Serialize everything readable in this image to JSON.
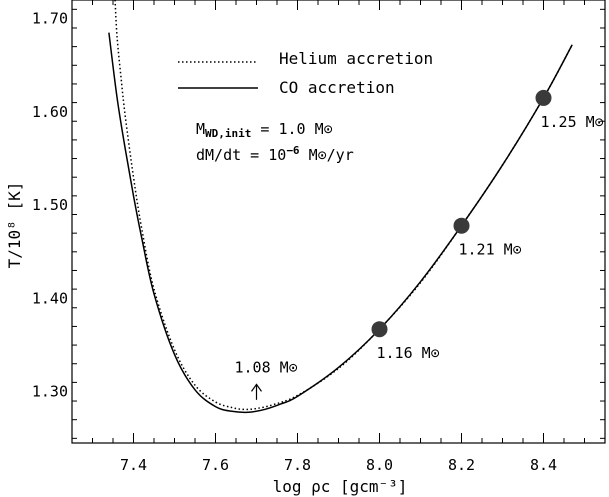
{
  "chart_data": {
    "type": "line",
    "title": "",
    "xlabel": "log ρc [gcm⁻³]",
    "ylabel": "T/10⁸ [K]",
    "xlim": [
      7.25,
      8.55
    ],
    "ylim": [
      1.245,
      1.72
    ],
    "x_ticks": [
      "7.4",
      "7.6",
      "7.8",
      "8.0",
      "8.2",
      "8.4"
    ],
    "y_ticks": [
      "1.30",
      "1.40",
      "1.50",
      "1.60",
      "1.70"
    ],
    "grid": false,
    "legend_position": "top-left",
    "series": [
      {
        "name": "Helium accretion",
        "style": "dotted",
        "color": "#000000",
        "x": [
          7.355,
          7.36,
          7.37,
          7.38,
          7.4,
          7.42,
          7.45,
          7.5,
          7.55,
          7.6,
          7.64,
          7.67,
          7.7,
          7.74,
          7.8,
          7.9,
          8.0,
          8.1,
          8.2,
          8.3,
          8.4,
          8.47
        ],
        "y": [
          1.72,
          1.68,
          1.635,
          1.595,
          1.53,
          1.475,
          1.41,
          1.345,
          1.307,
          1.289,
          1.283,
          1.281,
          1.282,
          1.286,
          1.296,
          1.325,
          1.367,
          1.417,
          1.478,
          1.543,
          1.615,
          1.672
        ]
      },
      {
        "name": "CO accretion",
        "style": "solid",
        "color": "#000000",
        "x": [
          7.34,
          7.36,
          7.38,
          7.4,
          7.42,
          7.45,
          7.5,
          7.55,
          7.6,
          7.64,
          7.68,
          7.72,
          7.76,
          7.8,
          7.9,
          8.0,
          8.1,
          8.2,
          8.3,
          8.4,
          8.47
        ],
        "y": [
          1.685,
          1.615,
          1.56,
          1.51,
          1.465,
          1.405,
          1.34,
          1.302,
          1.284,
          1.279,
          1.278,
          1.281,
          1.287,
          1.295,
          1.326,
          1.367,
          1.418,
          1.478,
          1.543,
          1.615,
          1.672
        ]
      }
    ],
    "markers": [
      {
        "x": 8.0,
        "y": 1.367,
        "label": "1.16 M⊙"
      },
      {
        "x": 8.2,
        "y": 1.478,
        "label": "1.21 M⊙"
      },
      {
        "x": 8.4,
        "y": 1.615,
        "label": "1.25 M⊙"
      }
    ],
    "arrow_annotation": {
      "x": 7.7,
      "y_from": 1.287,
      "y_to": 1.31,
      "label": "1.08 M⊙"
    },
    "annotations": [
      {
        "id": "mwd",
        "main": "M",
        "sub": "WD,init",
        "rest": " = 1.0 M⊙"
      },
      {
        "id": "rate",
        "main": "dM/dt = 10",
        "sup": "−6",
        "rest": " M⊙/yr"
      }
    ]
  }
}
